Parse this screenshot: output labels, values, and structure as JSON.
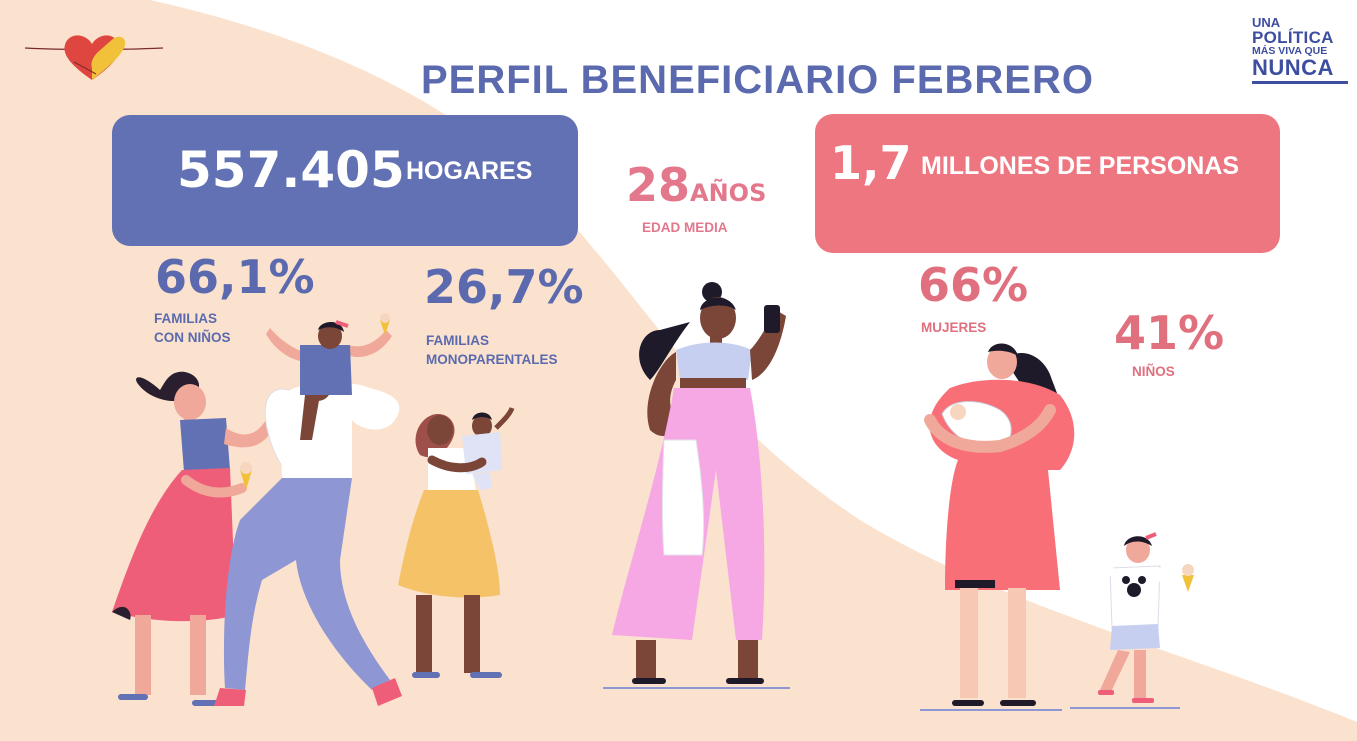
{
  "title": "PERFIL BENEFICIARIO FEBRERO",
  "logo": {
    "line1": "UNA",
    "line2": "POLÍTICA",
    "line3": "MÁS VIVA QUE",
    "line4": "NUNCA",
    "icon": "heart-hands-icon"
  },
  "households": {
    "value": "557.405",
    "label": "HOGARES"
  },
  "people": {
    "value": "1,7",
    "label": "MILLONES DE PERSONAS"
  },
  "age": {
    "value": "28",
    "unit": "AÑOS",
    "label": "EDAD MEDIA"
  },
  "stats": [
    {
      "value": "66,1%",
      "label_line1": "FAMILIAS",
      "label_line2": "CON NIÑOS"
    },
    {
      "value": "26,7%",
      "label_line1": "FAMILIAS",
      "label_line2": "MONOPARENTALES"
    },
    {
      "value": "66%",
      "label_line1": "MUJERES"
    },
    {
      "value": "41%",
      "label_line1": "NIÑOS"
    }
  ],
  "colors": {
    "blue": "#6271b4",
    "blue_text": "#5b6aae",
    "pink_box": "#ee7681",
    "pink_text": "#e3788d",
    "peach_bg": "#fbe2cf"
  }
}
